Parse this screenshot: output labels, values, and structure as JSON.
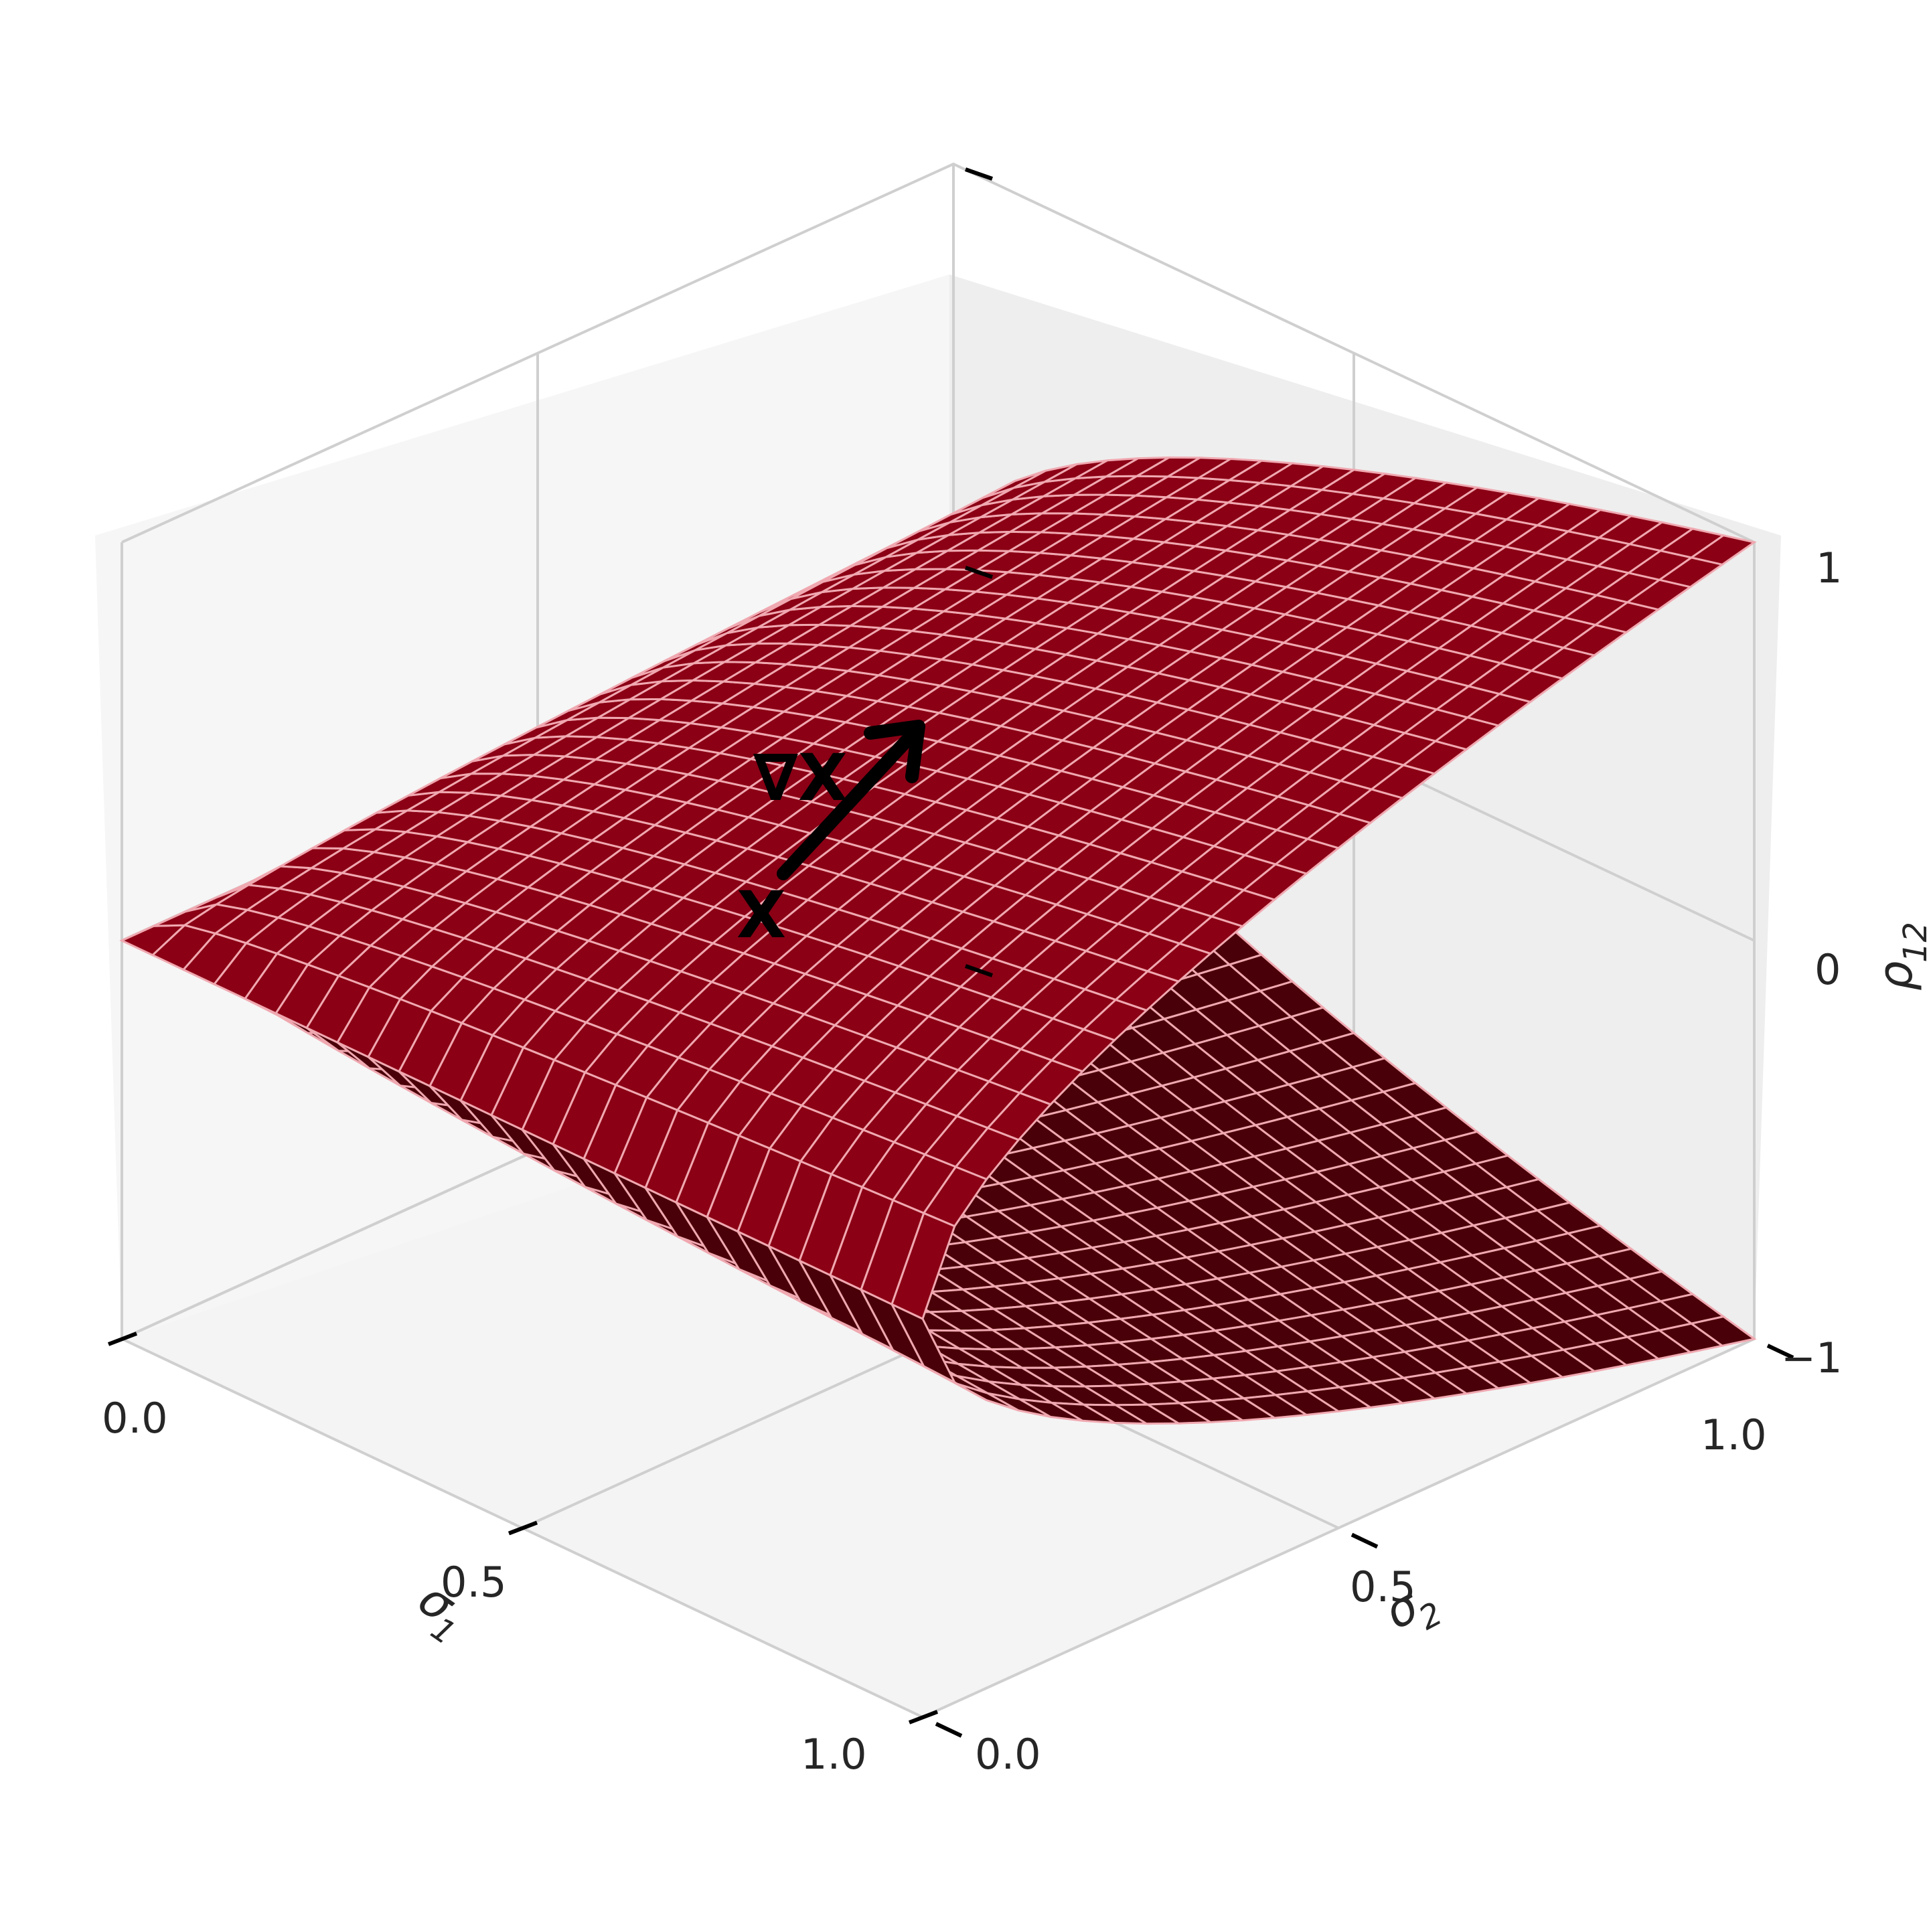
{
  "chart_data": {
    "type": "surface3d",
    "title": "",
    "x_axis": {
      "label": "σ1",
      "label_main": "σ",
      "label_sub": "1",
      "range": [
        0,
        1
      ],
      "ticks": [
        "0.0",
        "0.5",
        "1.0"
      ]
    },
    "y_axis": {
      "label": "σ2",
      "label_main": "σ",
      "label_sub": "2",
      "range": [
        0,
        1
      ],
      "ticks": [
        "0.0",
        "0.5",
        "1.0"
      ]
    },
    "z_axis": {
      "label": "ρ12",
      "label_main": "ρ",
      "label_sub": "12",
      "range": [
        -1,
        1
      ],
      "ticks": [
        "−1",
        "0",
        "1"
      ]
    },
    "surface": {
      "description": "Elliptope boundary for 2x2 correlation: ρ12 = ±sqrt(σ1·σ2) style surface",
      "face_color": "#8b0015",
      "edge_color": "#f0a8b0",
      "underside_color": "#4a0008"
    },
    "annotations": [
      {
        "text": "X",
        "role": "point-label"
      },
      {
        "text": "∇X",
        "role": "gradient-label"
      }
    ],
    "grid": true,
    "pane_color": "#f2f2f2"
  }
}
